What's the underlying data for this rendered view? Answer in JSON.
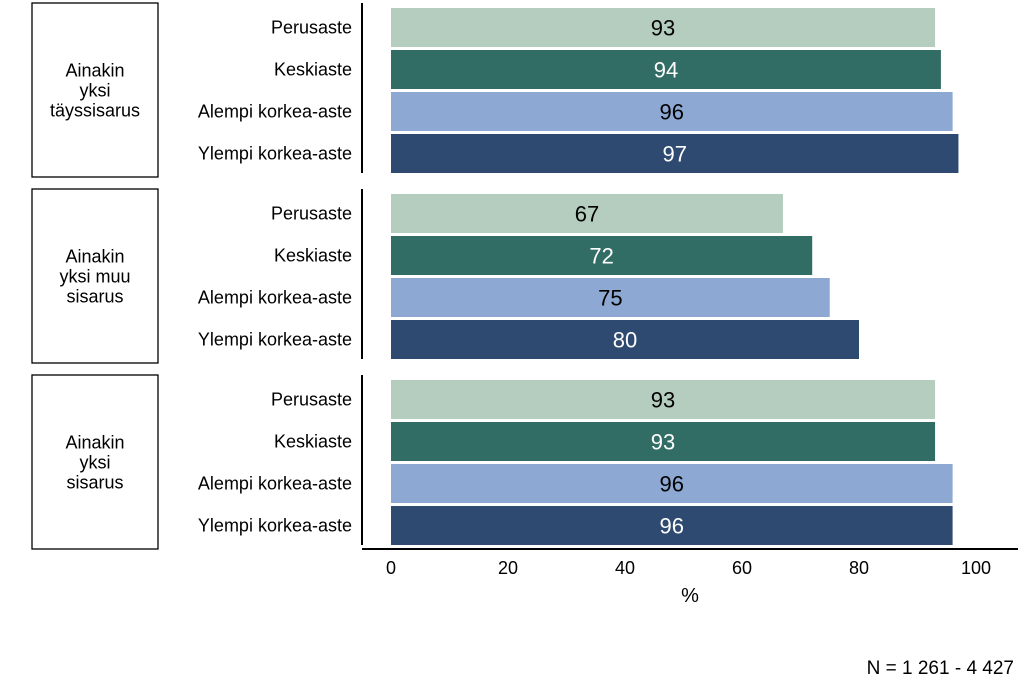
{
  "chart_data": {
    "type": "bar",
    "orientation": "horizontal",
    "xlabel": "%",
    "xlim": [
      0,
      100
    ],
    "xticks": [
      "0",
      "20",
      "40",
      "60",
      "80",
      "100"
    ],
    "grid": false,
    "categories": [
      "Perusaste",
      "Keskiaste",
      "Alempi korkea-aste",
      "Ylempi korkea-aste"
    ],
    "colors": [
      "#b4cdbf",
      "#316c65",
      "#8da8d2",
      "#2e4a70"
    ],
    "label_colors": [
      "#000000",
      "#ffffff",
      "#000000",
      "#ffffff"
    ],
    "groups": [
      {
        "label_lines": [
          "Ainakin",
          "yksi",
          "täyssisarus"
        ],
        "values": [
          93,
          94,
          96,
          97
        ]
      },
      {
        "label_lines": [
          "Ainakin",
          "yksi muu",
          "sisarus"
        ],
        "values": [
          67,
          72,
          75,
          80
        ]
      },
      {
        "label_lines": [
          "Ainakin",
          "yksi",
          "sisarus"
        ],
        "values": [
          93,
          93,
          96,
          96
        ]
      }
    ]
  },
  "footnote": "N = 1 261 - 4 427"
}
